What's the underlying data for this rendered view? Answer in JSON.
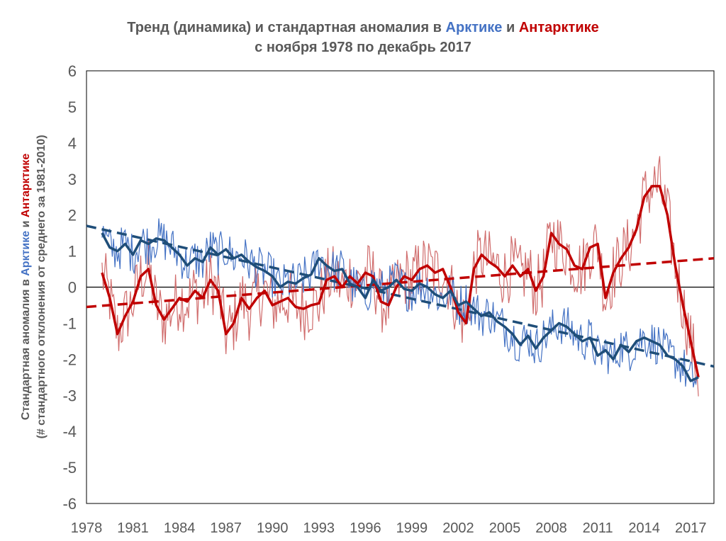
{
  "chart_data": {
    "type": "line",
    "title_parts": [
      "Тренд (динамика) и стандартная аномалия в ",
      "Арктике",
      " и ",
      "Антарктике"
    ],
    "subtitle": "с ноября 1978 по декабрь 2017",
    "ylabel_line1_parts": [
      "Стандартная аномалия в ",
      "Арктике",
      " и ",
      "Антарктике"
    ],
    "ylabel_line2": "(# стандартного отклонения от среднего за 1981-2010)",
    "xlim": [
      1978,
      2018.5
    ],
    "ylim": [
      -6,
      6
    ],
    "x_ticks": [
      "1978",
      "1981",
      "1984",
      "1987",
      "1990",
      "1993",
      "1996",
      "1999",
      "2002",
      "2005",
      "2008",
      "2011",
      "2014",
      "2017"
    ],
    "y_ticks": [
      "6",
      "5",
      "4",
      "3",
      "2",
      "1",
      "0",
      "-1",
      "-2",
      "-3",
      "-4",
      "-5",
      "-6"
    ],
    "colors": {
      "arctic": "#4472c4",
      "arctic_dark": "#1f4e79",
      "antarctic": "#c00000",
      "antarctic_light": "#d06c6c",
      "text": "#595959"
    },
    "arctic_smooth": {
      "x": [
        1979.0,
        1979.5,
        1980.0,
        1980.5,
        1981.0,
        1981.5,
        1982.0,
        1982.5,
        1983.0,
        1983.5,
        1984.0,
        1984.5,
        1985.0,
        1985.5,
        1986.0,
        1986.5,
        1987.0,
        1987.5,
        1988.0,
        1988.5,
        1989.0,
        1989.5,
        1990.0,
        1990.5,
        1991.0,
        1991.5,
        1992.0,
        1992.5,
        1993.0,
        1993.5,
        1994.0,
        1994.5,
        1995.0,
        1995.5,
        1996.0,
        1996.5,
        1997.0,
        1997.5,
        1998.0,
        1998.5,
        1999.0,
        1999.5,
        2000.0,
        2000.5,
        2001.0,
        2001.5,
        2002.0,
        2002.5,
        2003.0,
        2003.5,
        2004.0,
        2004.5,
        2005.0,
        2005.5,
        2006.0,
        2006.5,
        2007.0,
        2007.5,
        2008.0,
        2008.5,
        2009.0,
        2009.5,
        2010.0,
        2010.5,
        2011.0,
        2011.5,
        2012.0,
        2012.5,
        2013.0,
        2013.5,
        2014.0,
        2014.5,
        2015.0,
        2015.5,
        2016.0,
        2016.5,
        2017.0,
        2017.5
      ],
      "y": [
        1.5,
        1.1,
        1.0,
        1.2,
        0.9,
        1.3,
        1.2,
        1.35,
        1.3,
        1.1,
        0.9,
        0.6,
        0.8,
        0.7,
        1.1,
        0.9,
        1.05,
        0.8,
        0.9,
        0.7,
        0.55,
        0.45,
        0.3,
        0.0,
        0.15,
        0.1,
        0.25,
        0.35,
        0.8,
        0.6,
        0.45,
        0.5,
        0.1,
        0.0,
        -0.3,
        0.2,
        -0.1,
        0.0,
        0.2,
        -0.05,
        -0.1,
        0.1,
        0.0,
        -0.2,
        -0.3,
        -0.1,
        -0.5,
        -0.4,
        -0.6,
        -0.8,
        -0.7,
        -0.95,
        -1.1,
        -1.3,
        -1.6,
        -1.35,
        -1.7,
        -1.4,
        -1.2,
        -1.0,
        -1.1,
        -1.3,
        -1.5,
        -1.4,
        -1.9,
        -1.75,
        -2.0,
        -1.6,
        -1.8,
        -1.5,
        -1.4,
        -1.5,
        -1.6,
        -1.9,
        -2.0,
        -2.2,
        -2.6,
        -2.5
      ]
    },
    "antarctic_smooth": {
      "x": [
        1979.0,
        1979.5,
        1980.0,
        1980.5,
        1981.0,
        1981.5,
        1982.0,
        1982.5,
        1983.0,
        1983.5,
        1984.0,
        1984.5,
        1985.0,
        1985.5,
        1986.0,
        1986.5,
        1987.0,
        1987.5,
        1988.0,
        1988.5,
        1989.0,
        1989.5,
        1990.0,
        1990.5,
        1991.0,
        1991.5,
        1992.0,
        1992.5,
        1993.0,
        1993.5,
        1994.0,
        1994.5,
        1995.0,
        1995.5,
        1996.0,
        1996.5,
        1997.0,
        1997.5,
        1998.0,
        1998.5,
        1999.0,
        1999.5,
        2000.0,
        2000.5,
        2001.0,
        2001.5,
        2002.0,
        2002.5,
        2003.0,
        2003.5,
        2004.0,
        2004.5,
        2005.0,
        2005.5,
        2006.0,
        2006.5,
        2007.0,
        2007.5,
        2008.0,
        2008.5,
        2009.0,
        2009.5,
        2010.0,
        2010.5,
        2011.0,
        2011.5,
        2012.0,
        2012.5,
        2013.0,
        2013.5,
        2014.0,
        2014.5,
        2015.0,
        2015.5,
        2016.0,
        2016.5,
        2017.0,
        2017.5
      ],
      "y": [
        0.4,
        -0.3,
        -1.3,
        -0.8,
        -0.4,
        0.3,
        0.5,
        -0.5,
        -0.9,
        -0.6,
        -0.3,
        -0.4,
        -0.1,
        -0.3,
        0.2,
        -0.1,
        -1.3,
        -1.0,
        -0.3,
        -0.6,
        -0.3,
        -0.1,
        -0.5,
        -0.4,
        -0.3,
        -0.55,
        -0.6,
        -0.5,
        -0.45,
        0.2,
        0.3,
        0.0,
        0.3,
        0.1,
        0.4,
        0.3,
        -0.4,
        -0.5,
        0.0,
        0.3,
        0.2,
        0.5,
        0.6,
        0.4,
        0.5,
        0.0,
        -0.7,
        -1.0,
        0.5,
        0.9,
        0.7,
        0.55,
        0.3,
        0.6,
        0.3,
        0.5,
        -0.1,
        0.3,
        1.5,
        1.2,
        1.05,
        0.6,
        0.5,
        1.1,
        1.2,
        -0.3,
        0.4,
        0.8,
        1.1,
        1.6,
        2.5,
        2.8,
        2.8,
        2.0,
        0.6,
        -0.5,
        -1.5,
        -2.5
      ]
    },
    "arctic_trend": {
      "x": [
        1978.0,
        2018.5
      ],
      "y": [
        1.7,
        -2.2
      ]
    },
    "antarctic_trend": {
      "x": [
        1978.0,
        2018.5
      ],
      "y": [
        -0.55,
        0.8
      ]
    }
  }
}
